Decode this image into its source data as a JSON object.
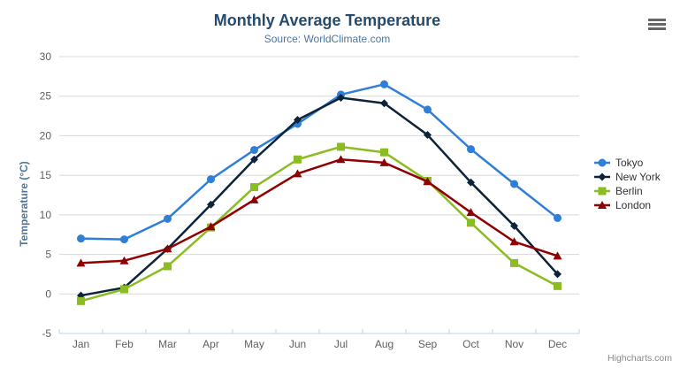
{
  "credits": "Highcharts.com",
  "menu": {
    "tooltip": "Chart context menu"
  },
  "colors": {
    "title": "#274b6d",
    "subtitle": "#4d759e",
    "axis_title": "#4d759e",
    "tick_label": "#606060",
    "gridline": "#d8d8d8",
    "axis_line": "#c0d0e0",
    "legend_text": "#333333",
    "credits_text": "#8a8a8a"
  },
  "chart_data": {
    "type": "line",
    "title": "Monthly Average Temperature",
    "subtitle": "Source: WorldClimate.com",
    "xlabel": "",
    "ylabel": "Temperature (°C)",
    "ylim": [
      -5,
      30
    ],
    "ytick_step": 5,
    "grid": true,
    "legend_position": "right",
    "categories": [
      "Jan",
      "Feb",
      "Mar",
      "Apr",
      "May",
      "Jun",
      "Jul",
      "Aug",
      "Sep",
      "Oct",
      "Nov",
      "Dec"
    ],
    "series": [
      {
        "name": "Tokyo",
        "color": "#2f7ed8",
        "marker": "circle",
        "values": [
          7.0,
          6.9,
          9.5,
          14.5,
          18.2,
          21.5,
          25.2,
          26.5,
          23.3,
          18.3,
          13.9,
          9.6
        ]
      },
      {
        "name": "New York",
        "color": "#0d233a",
        "marker": "diamond",
        "values": [
          -0.2,
          0.8,
          5.7,
          11.3,
          17.0,
          22.0,
          24.8,
          24.1,
          20.1,
          14.1,
          8.6,
          2.5
        ]
      },
      {
        "name": "Berlin",
        "color": "#8bbc21",
        "marker": "square",
        "values": [
          -0.9,
          0.6,
          3.5,
          8.4,
          13.5,
          17.0,
          18.6,
          17.9,
          14.3,
          9.0,
          3.9,
          1.0
        ]
      },
      {
        "name": "London",
        "color": "#910000",
        "marker": "triangle",
        "values": [
          3.9,
          4.2,
          5.7,
          8.5,
          11.9,
          15.2,
          17.0,
          16.6,
          14.2,
          10.3,
          6.6,
          4.8
        ]
      }
    ]
  }
}
